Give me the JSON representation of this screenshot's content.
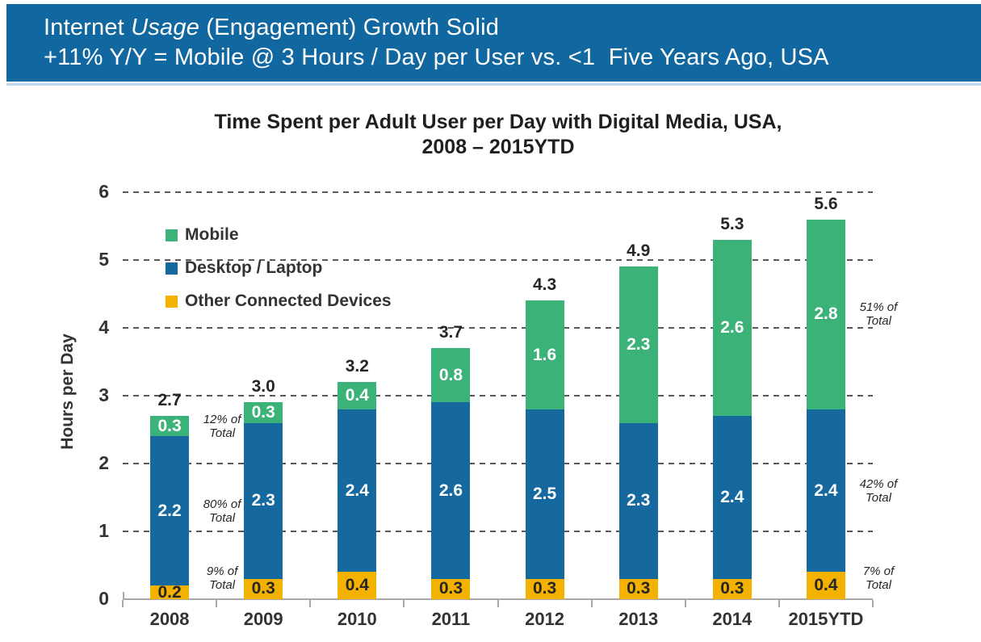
{
  "banner": {
    "line1_pre": "Internet ",
    "line1_italic": "Usage",
    "line1_post": " (Engagement) Growth Solid",
    "line2": "+11% Y/Y = Mobile @ 3 Hours / Day per User vs. <1  Five Years Ago, USA",
    "bg_color": "#1168A0",
    "underline_color": "#BFD9EA",
    "text_color": "#FFFFFF"
  },
  "chart_data": {
    "type": "bar",
    "stacked": true,
    "title_line1": "Time Spent per Adult User per Day with Digital Media, USA,",
    "title_line2": "2008 – 2015YTD",
    "ylabel": "Hours per Day",
    "xlabel": "",
    "ylim": [
      0,
      6
    ],
    "yticks": [
      0,
      1,
      2,
      3,
      4,
      5,
      6
    ],
    "grid": "horizontal-dashed",
    "legend_position": "inside-top-left",
    "categories": [
      "2008",
      "2009",
      "2010",
      "2011",
      "2012",
      "2013",
      "2014",
      "2015YTD"
    ],
    "series": [
      {
        "name": "Mobile",
        "color": "#3BB278",
        "values": [
          0.3,
          0.3,
          0.4,
          0.8,
          1.6,
          2.3,
          2.6,
          2.8
        ]
      },
      {
        "name": "Desktop / Laptop",
        "color": "#16699E",
        "values": [
          2.2,
          2.3,
          2.4,
          2.6,
          2.5,
          2.3,
          2.4,
          2.4
        ]
      },
      {
        "name": "Other Connected Devices",
        "color": "#F3B200",
        "values": [
          0.2,
          0.3,
          0.4,
          0.3,
          0.3,
          0.3,
          0.3,
          0.4
        ]
      }
    ],
    "totals": [
      "2.7",
      "3.0",
      "3.2",
      "3.7",
      "4.3",
      "4.9",
      "5.3",
      "5.6"
    ],
    "value_label_color_on_mobile": "#FFFFFF",
    "value_label_color_on_desktop": "#FFFFFF",
    "value_label_color_on_other": "#262626",
    "annotations": [
      {
        "category": "2008",
        "series": "Mobile",
        "text": "12% of\nTotal"
      },
      {
        "category": "2008",
        "series": "Desktop / Laptop",
        "text": "80% of\nTotal"
      },
      {
        "category": "2008",
        "series": "Other Connected Devices",
        "text": "9% of\nTotal"
      },
      {
        "category": "2015YTD",
        "series": "Mobile",
        "text": "51% of\nTotal"
      },
      {
        "category": "2015YTD",
        "series": "Desktop / Laptop",
        "text": "42% of\nTotal"
      },
      {
        "category": "2015YTD",
        "series": "Other Connected Devices",
        "text": "7% of\nTotal"
      }
    ],
    "grid_color": "#595959",
    "axis_color": "#A8A8A8",
    "tick_label_color": "#333333"
  }
}
